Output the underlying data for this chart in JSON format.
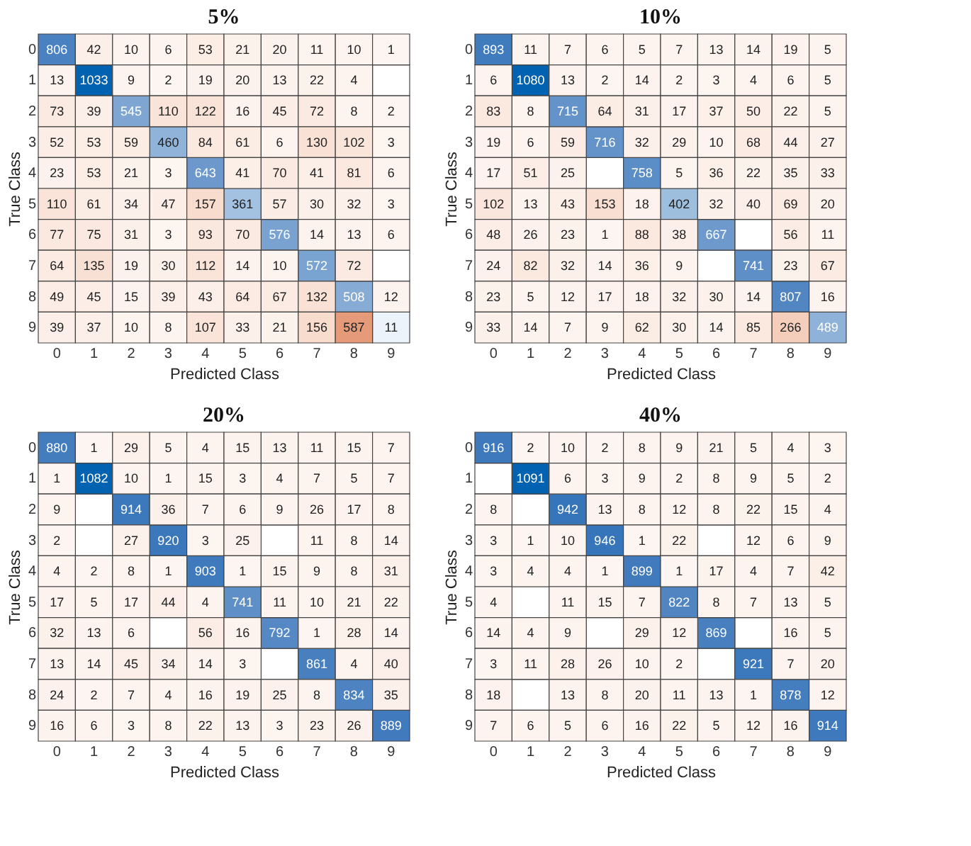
{
  "chart_data": [
    {
      "type": "heatmap",
      "title": "5%",
      "xlabel": "Predicted Class",
      "ylabel": "True Class",
      "data_labels": true,
      "categories": [
        "0",
        "1",
        "2",
        "3",
        "4",
        "5",
        "6",
        "7",
        "8",
        "9"
      ],
      "y_categories": [
        "0",
        "1",
        "2",
        "3",
        "4",
        "5",
        "6",
        "7",
        "8",
        "9"
      ],
      "cells": [
        [
          806,
          42,
          10,
          6,
          53,
          21,
          20,
          11,
          10,
          1
        ],
        [
          13,
          1033,
          9,
          2,
          19,
          20,
          13,
          22,
          4,
          null
        ],
        [
          73,
          39,
          545,
          110,
          122,
          16,
          45,
          72,
          8,
          2
        ],
        [
          52,
          53,
          59,
          460,
          84,
          61,
          6,
          130,
          102,
          3
        ],
        [
          23,
          53,
          21,
          3,
          643,
          41,
          70,
          41,
          81,
          6
        ],
        [
          110,
          61,
          34,
          47,
          157,
          361,
          57,
          30,
          32,
          3
        ],
        [
          77,
          75,
          31,
          3,
          93,
          70,
          576,
          14,
          13,
          6
        ],
        [
          64,
          135,
          19,
          30,
          112,
          14,
          10,
          572,
          72,
          null
        ],
        [
          49,
          45,
          15,
          39,
          43,
          64,
          67,
          132,
          508,
          12
        ],
        [
          39,
          37,
          10,
          8,
          107,
          33,
          21,
          156,
          587,
          11
        ]
      ]
    },
    {
      "type": "heatmap",
      "title": "10%",
      "xlabel": "Predicted Class",
      "ylabel": "True Class",
      "data_labels": true,
      "categories": [
        "0",
        "1",
        "2",
        "3",
        "4",
        "5",
        "6",
        "7",
        "8",
        "9"
      ],
      "y_categories": [
        "0",
        "1",
        "2",
        "3",
        "4",
        "5",
        "6",
        "7",
        "8",
        "9"
      ],
      "cells": [
        [
          893,
          11,
          7,
          6,
          5,
          7,
          13,
          14,
          19,
          5
        ],
        [
          6,
          1080,
          13,
          2,
          14,
          2,
          3,
          4,
          6,
          5
        ],
        [
          83,
          8,
          715,
          64,
          31,
          17,
          37,
          50,
          22,
          5
        ],
        [
          19,
          6,
          59,
          716,
          32,
          29,
          10,
          68,
          44,
          27
        ],
        [
          17,
          51,
          25,
          null,
          758,
          5,
          36,
          22,
          35,
          33
        ],
        [
          102,
          13,
          43,
          153,
          18,
          402,
          32,
          40,
          69,
          20
        ],
        [
          48,
          26,
          23,
          1,
          88,
          38,
          667,
          null,
          56,
          11
        ],
        [
          24,
          82,
          32,
          14,
          36,
          9,
          null,
          741,
          23,
          67
        ],
        [
          23,
          5,
          12,
          17,
          18,
          32,
          30,
          14,
          807,
          16
        ],
        [
          33,
          14,
          7,
          9,
          62,
          30,
          14,
          85,
          266,
          489
        ]
      ]
    },
    {
      "type": "heatmap",
      "title": "20%",
      "xlabel": "Predicted Class",
      "ylabel": "True Class",
      "data_labels": true,
      "categories": [
        "0",
        "1",
        "2",
        "3",
        "4",
        "5",
        "6",
        "7",
        "8",
        "9"
      ],
      "y_categories": [
        "0",
        "1",
        "2",
        "3",
        "4",
        "5",
        "6",
        "7",
        "8",
        "9"
      ],
      "cells": [
        [
          880,
          1,
          29,
          5,
          4,
          15,
          13,
          11,
          15,
          7
        ],
        [
          1,
          1082,
          10,
          1,
          15,
          3,
          4,
          7,
          5,
          7
        ],
        [
          9,
          null,
          914,
          36,
          7,
          6,
          9,
          26,
          17,
          8
        ],
        [
          2,
          null,
          27,
          920,
          3,
          25,
          null,
          11,
          8,
          14
        ],
        [
          4,
          2,
          8,
          1,
          903,
          1,
          15,
          9,
          8,
          31
        ],
        [
          17,
          5,
          17,
          44,
          4,
          741,
          11,
          10,
          21,
          22
        ],
        [
          32,
          13,
          6,
          null,
          56,
          16,
          792,
          1,
          28,
          14
        ],
        [
          13,
          14,
          45,
          34,
          14,
          3,
          null,
          861,
          4,
          40
        ],
        [
          24,
          2,
          7,
          4,
          16,
          19,
          25,
          8,
          834,
          35
        ],
        [
          16,
          6,
          3,
          8,
          22,
          13,
          3,
          23,
          26,
          889
        ]
      ]
    },
    {
      "type": "heatmap",
      "title": "40%",
      "xlabel": "Predicted Class",
      "ylabel": "True Class",
      "data_labels": true,
      "categories": [
        "0",
        "1",
        "2",
        "3",
        "4",
        "5",
        "6",
        "7",
        "8",
        "9"
      ],
      "y_categories": [
        "0",
        "1",
        "2",
        "3",
        "4",
        "5",
        "6",
        "7",
        "8",
        "9"
      ],
      "cells": [
        [
          916,
          2,
          10,
          2,
          8,
          9,
          21,
          5,
          4,
          3
        ],
        [
          null,
          1091,
          6,
          3,
          9,
          2,
          8,
          9,
          5,
          2
        ],
        [
          8,
          null,
          942,
          13,
          8,
          12,
          8,
          22,
          15,
          4
        ],
        [
          3,
          1,
          10,
          946,
          1,
          22,
          null,
          12,
          6,
          9
        ],
        [
          3,
          4,
          4,
          1,
          899,
          1,
          17,
          4,
          7,
          42
        ],
        [
          4,
          null,
          11,
          15,
          7,
          822,
          8,
          7,
          13,
          5
        ],
        [
          14,
          4,
          9,
          null,
          29,
          12,
          869,
          null,
          16,
          5
        ],
        [
          3,
          11,
          28,
          26,
          10,
          2,
          null,
          921,
          7,
          20
        ],
        [
          18,
          null,
          13,
          8,
          20,
          11,
          13,
          1,
          878,
          12
        ],
        [
          7,
          6,
          5,
          6,
          16,
          22,
          5,
          12,
          16,
          914
        ]
      ]
    }
  ]
}
